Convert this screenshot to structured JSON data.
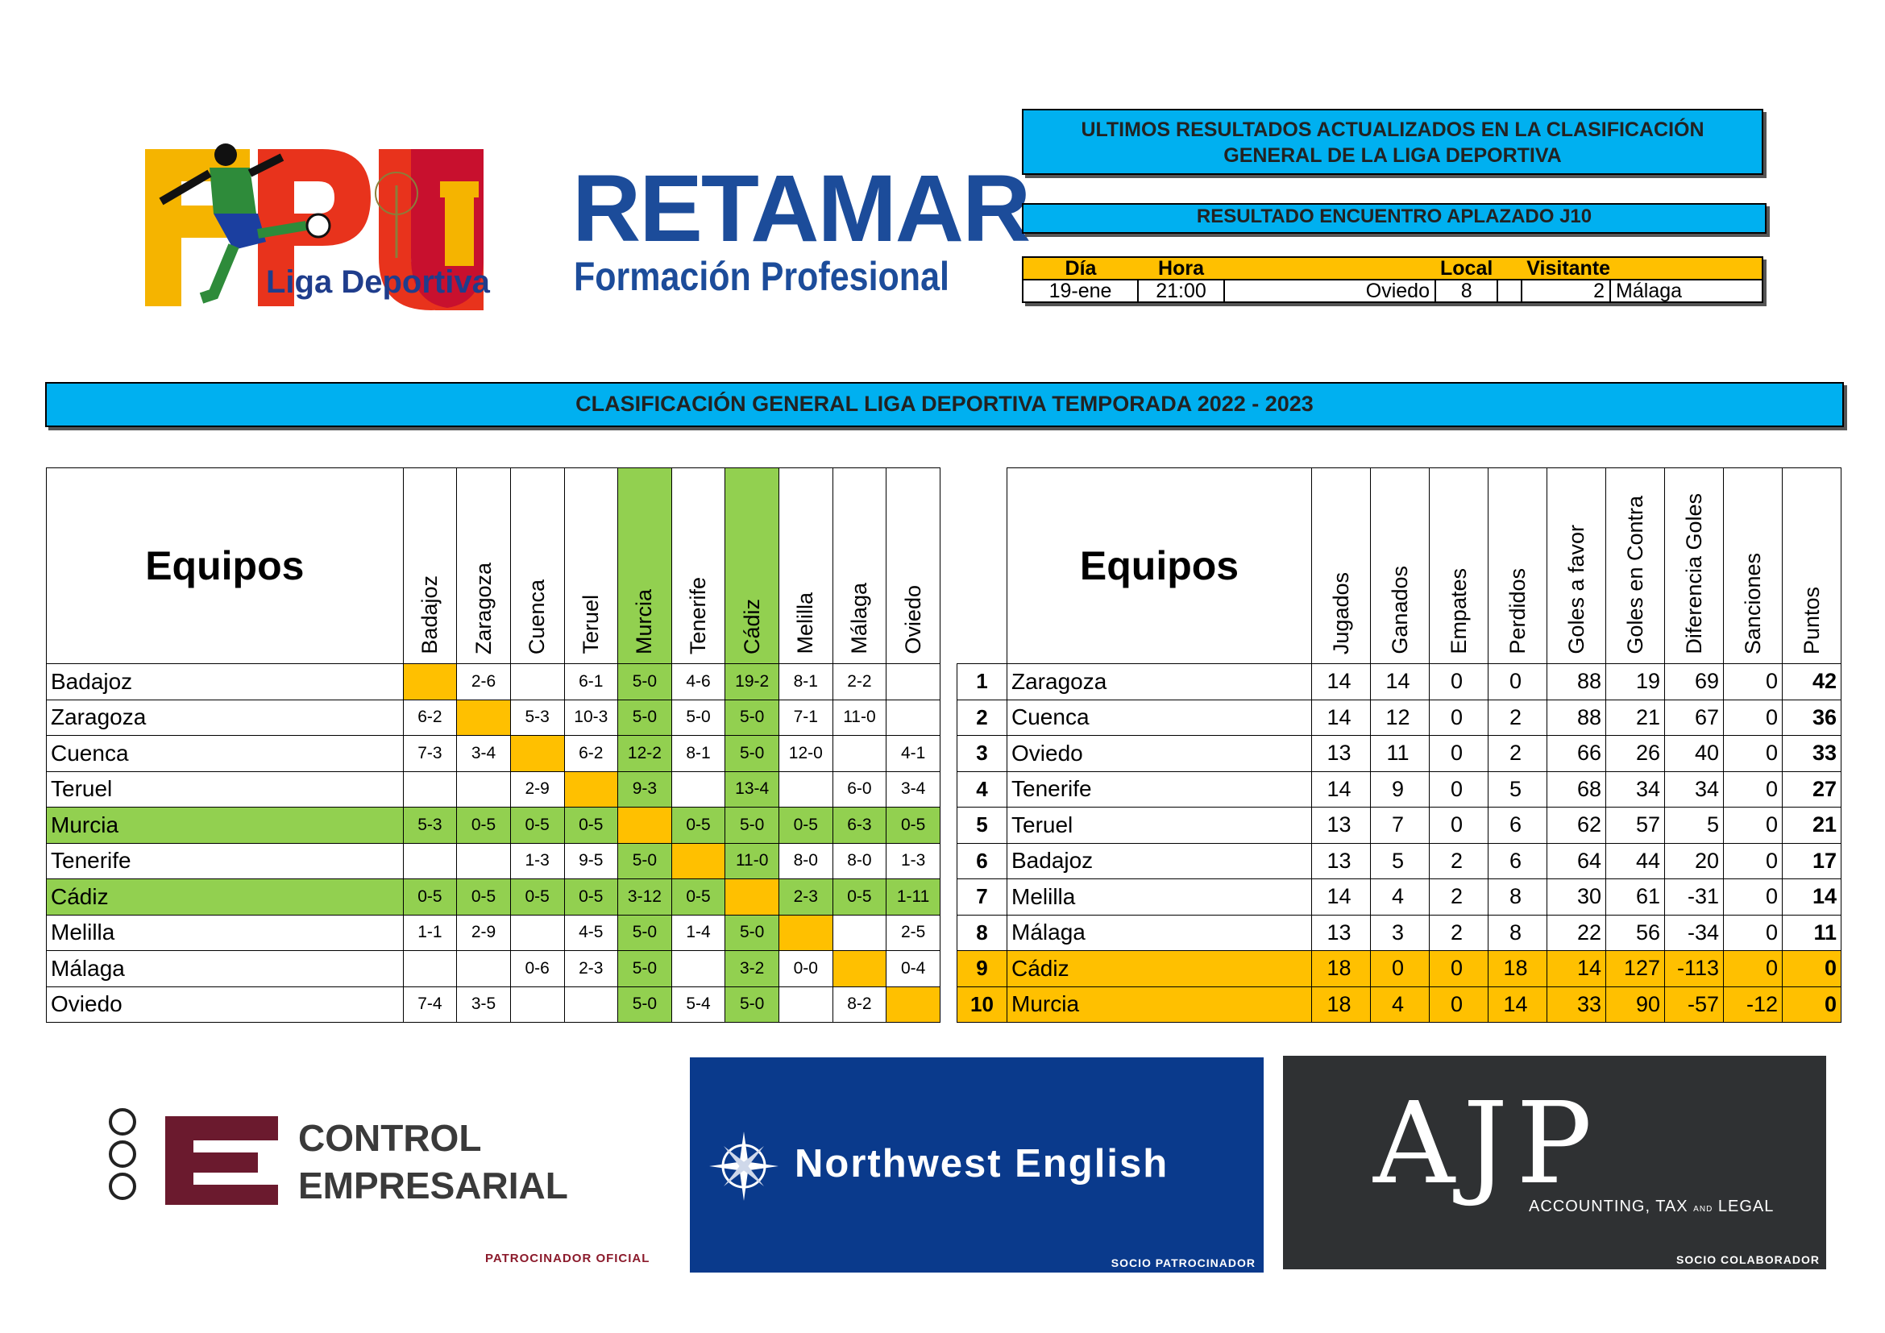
{
  "logo": {
    "caption": "Liga Deportiva",
    "letters": "FPU"
  },
  "retamar": {
    "title": "RETAMAR",
    "subtitle": "Formación Profesional"
  },
  "info": {
    "updated_line1": "ULTIMOS RESULTADOS ACTUALIZADOS EN LA CLASIFICACIÓN",
    "updated_line2": "GENERAL DE LA LIGA DEPORTIVA",
    "postponed": "RESULTADO ENCUENTRO APLAZADO J10",
    "match_headers": {
      "dia": "Día",
      "hora": "Hora",
      "local": "Local",
      "visitante": "Visitante"
    },
    "match": {
      "dia": "19-ene",
      "hora": "21:00",
      "local_team": "Oviedo",
      "local_goals": "8",
      "visitor_goals": "2",
      "visitor_team": "Málaga"
    }
  },
  "banner": "CLASIFICACIÓN GENERAL LIGA DEPORTIVA TEMPORADA 2022 - 2023",
  "matrix": {
    "title": "Equipos",
    "columns": [
      "Badajoz",
      "Zaragoza",
      "Cuenca",
      "Teruel",
      "Murcia",
      "Tenerife",
      "Cádiz",
      "Melilla",
      "Málaga",
      "Oviedo"
    ],
    "rows": [
      {
        "team": "Badajoz",
        "cells": [
          "",
          "2-6",
          "",
          "6-1",
          "5-0",
          "4-6",
          "19-2",
          "8-1",
          "2-2",
          ""
        ]
      },
      {
        "team": "Zaragoza",
        "cells": [
          "6-2",
          "",
          "5-3",
          "10-3",
          "5-0",
          "5-0",
          "5-0",
          "7-1",
          "11-0",
          ""
        ]
      },
      {
        "team": "Cuenca",
        "cells": [
          "7-3",
          "3-4",
          "",
          "6-2",
          "12-2",
          "8-1",
          "5-0",
          "12-0",
          "",
          "4-1"
        ]
      },
      {
        "team": "Teruel",
        "cells": [
          "",
          "",
          "2-9",
          "",
          "9-3",
          "",
          "13-4",
          "",
          "6-0",
          "3-4"
        ]
      },
      {
        "team": "Murcia",
        "cells": [
          "5-3",
          "0-5",
          "0-5",
          "0-5",
          "",
          "0-5",
          "5-0",
          "0-5",
          "6-3",
          "0-5"
        ]
      },
      {
        "team": "Tenerife",
        "cells": [
          "",
          "",
          "1-3",
          "9-5",
          "5-0",
          "",
          "11-0",
          "8-0",
          "8-0",
          "1-3"
        ]
      },
      {
        "team": "Cádiz",
        "cells": [
          "0-5",
          "0-5",
          "0-5",
          "0-5",
          "3-12",
          "0-5",
          "",
          "2-3",
          "0-5",
          "1-11"
        ]
      },
      {
        "team": "Melilla",
        "cells": [
          "1-1",
          "2-9",
          "",
          "4-5",
          "5-0",
          "1-4",
          "5-0",
          "",
          "",
          "2-5"
        ]
      },
      {
        "team": "Málaga",
        "cells": [
          "",
          "",
          "0-6",
          "2-3",
          "5-0",
          "",
          "3-2",
          "0-0",
          "",
          "0-4"
        ]
      },
      {
        "team": "Oviedo",
        "cells": [
          "7-4",
          "3-5",
          "",
          "",
          "5-0",
          "5-4",
          "5-0",
          "",
          "8-2",
          ""
        ]
      }
    ]
  },
  "standings": {
    "title": "Equipos",
    "columns": [
      "Jugados",
      "Ganados",
      "Empates",
      "Perdidos",
      "Goles a favor",
      "Goles en Contra",
      "Diferencia Goles",
      "Sanciones",
      "Puntos"
    ],
    "rows": [
      {
        "rank": "1",
        "team": "Zaragoza",
        "vals": [
          "14",
          "14",
          "0",
          "0",
          "88",
          "19",
          "69",
          "0",
          "42"
        ]
      },
      {
        "rank": "2",
        "team": "Cuenca",
        "vals": [
          "14",
          "12",
          "0",
          "2",
          "88",
          "21",
          "67",
          "0",
          "36"
        ]
      },
      {
        "rank": "3",
        "team": "Oviedo",
        "vals": [
          "13",
          "11",
          "0",
          "2",
          "66",
          "26",
          "40",
          "0",
          "33"
        ]
      },
      {
        "rank": "4",
        "team": "Tenerife",
        "vals": [
          "14",
          "9",
          "0",
          "5",
          "68",
          "34",
          "34",
          "0",
          "27"
        ]
      },
      {
        "rank": "5",
        "team": "Teruel",
        "vals": [
          "13",
          "7",
          "0",
          "6",
          "62",
          "57",
          "5",
          "0",
          "21"
        ]
      },
      {
        "rank": "6",
        "team": "Badajoz",
        "vals": [
          "13",
          "5",
          "2",
          "6",
          "64",
          "44",
          "20",
          "0",
          "17"
        ]
      },
      {
        "rank": "7",
        "team": "Melilla",
        "vals": [
          "14",
          "4",
          "2",
          "8",
          "30",
          "61",
          "-31",
          "0",
          "14"
        ]
      },
      {
        "rank": "8",
        "team": "Málaga",
        "vals": [
          "13",
          "3",
          "2",
          "8",
          "22",
          "56",
          "-34",
          "0",
          "11"
        ]
      },
      {
        "rank": "9",
        "team": "Cádiz",
        "vals": [
          "18",
          "0",
          "0",
          "18",
          "14",
          "127",
          "-113",
          "0",
          "0"
        ]
      },
      {
        "rank": "10",
        "team": "Murcia",
        "vals": [
          "18",
          "4",
          "0",
          "14",
          "33",
          "90",
          "-57",
          "-12",
          "0"
        ]
      }
    ]
  },
  "sponsors": {
    "control": {
      "line1": "CONTROL",
      "line2": "EMPRESARIAL",
      "label": "PATROCINADOR OFICIAL"
    },
    "northwest": {
      "title": "Northwest English",
      "label": "SOCIO PATROCINADOR"
    },
    "ajp": {
      "title": "AJP",
      "sub_a": "ACCOUNTING, TAX",
      "sub_and": "AND",
      "sub_b": "LEGAL",
      "label": "SOCIO COLABORADOR"
    }
  },
  "colors": {
    "blue": "#00b0f0",
    "orange": "#ffc000",
    "green": "#92d050",
    "navy": "#1c4c9a"
  }
}
